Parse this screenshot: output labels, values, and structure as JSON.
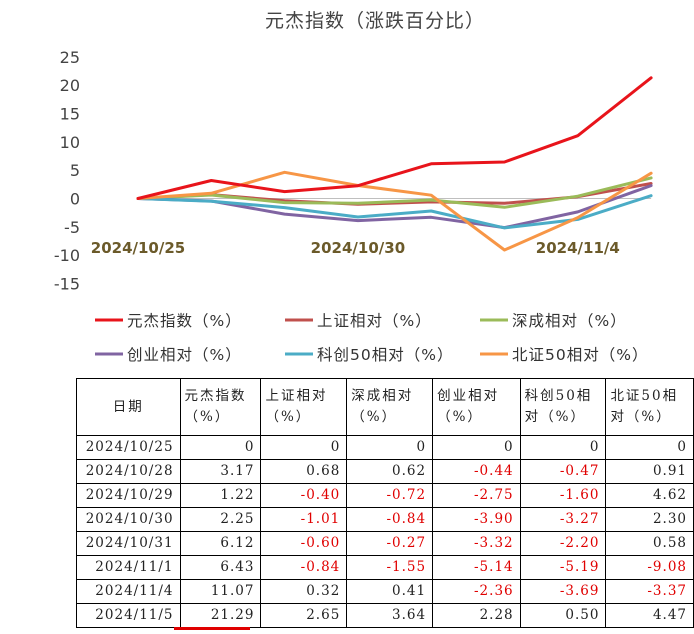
{
  "chart_data": {
    "type": "line",
    "title": "元杰指数（涨跌百分比）",
    "x": [
      "2024/10/25",
      "2024/10/28",
      "2024/10/29",
      "2024/10/30",
      "2024/10/31",
      "2024/11/1",
      "2024/11/4",
      "2024/11/5"
    ],
    "x_tick_labels": [
      "2024/10/25",
      "2024/10/30",
      "2024/11/4"
    ],
    "x_tick_indices": [
      0,
      3,
      6
    ],
    "ylim": [
      -15,
      25
    ],
    "y_ticks": [
      25,
      20,
      15,
      10,
      5,
      0,
      -5,
      -10,
      -15
    ],
    "grid": false,
    "legend_position": "bottom",
    "series": [
      {
        "name": "元杰指数（%）",
        "color": "#e8141b",
        "values": [
          0,
          3.17,
          1.22,
          2.25,
          6.12,
          6.43,
          11.07,
          21.29
        ]
      },
      {
        "name": "上证相对（%）",
        "color": "#c0504d",
        "values": [
          0,
          0.68,
          -0.4,
          -1.01,
          -0.6,
          -0.84,
          0.32,
          2.65
        ]
      },
      {
        "name": "深成相对（%）",
        "color": "#9bbb59",
        "values": [
          0,
          0.62,
          -0.72,
          -0.84,
          -0.27,
          -1.55,
          0.41,
          3.64
        ]
      },
      {
        "name": "创业相对（%）",
        "color": "#8064a2",
        "values": [
          0,
          -0.44,
          -2.75,
          -3.9,
          -3.32,
          -5.14,
          -2.36,
          2.28
        ]
      },
      {
        "name": "科创50相对（%）",
        "color": "#4bacc6",
        "values": [
          0,
          -0.47,
          -1.6,
          -3.27,
          -2.2,
          -5.19,
          -3.69,
          0.5
        ]
      },
      {
        "name": "北证50相对（%）",
        "color": "#f79646",
        "values": [
          0,
          0.91,
          4.62,
          2.3,
          0.58,
          -9.08,
          -3.37,
          4.47
        ]
      }
    ]
  },
  "table": {
    "headers": [
      "日期",
      "元杰指数（%）",
      "上证相对（%）",
      "深成相对（%）",
      "创业相对（%）",
      "科创50相对（%）",
      "北证50相对（%）"
    ],
    "rows": [
      [
        "2024/10/25",
        "0",
        "0",
        "0",
        "0",
        "0",
        "0"
      ],
      [
        "2024/10/28",
        "3.17",
        "0.68",
        "0.62",
        "-0.44",
        "-0.47",
        "0.91"
      ],
      [
        "2024/10/29",
        "1.22",
        "-0.40",
        "-0.72",
        "-2.75",
        "-1.60",
        "4.62"
      ],
      [
        "2024/10/30",
        "2.25",
        "-1.01",
        "-0.84",
        "-3.90",
        "-3.27",
        "2.30"
      ],
      [
        "2024/10/31",
        "6.12",
        "-0.60",
        "-0.27",
        "-3.32",
        "-2.20",
        "0.58"
      ],
      [
        "2024/11/1",
        "6.43",
        "-0.84",
        "-1.55",
        "-5.14",
        "-5.19",
        "-9.08"
      ],
      [
        "2024/11/4",
        "11.07",
        "0.32",
        "0.41",
        "-2.36",
        "-3.69",
        "-3.37"
      ],
      [
        "2024/11/5",
        "21.29",
        "2.65",
        "3.64",
        "2.28",
        "0.50",
        "4.47"
      ]
    ],
    "highlight": {
      "row": 7,
      "col": 1,
      "color": "#e00000"
    }
  }
}
